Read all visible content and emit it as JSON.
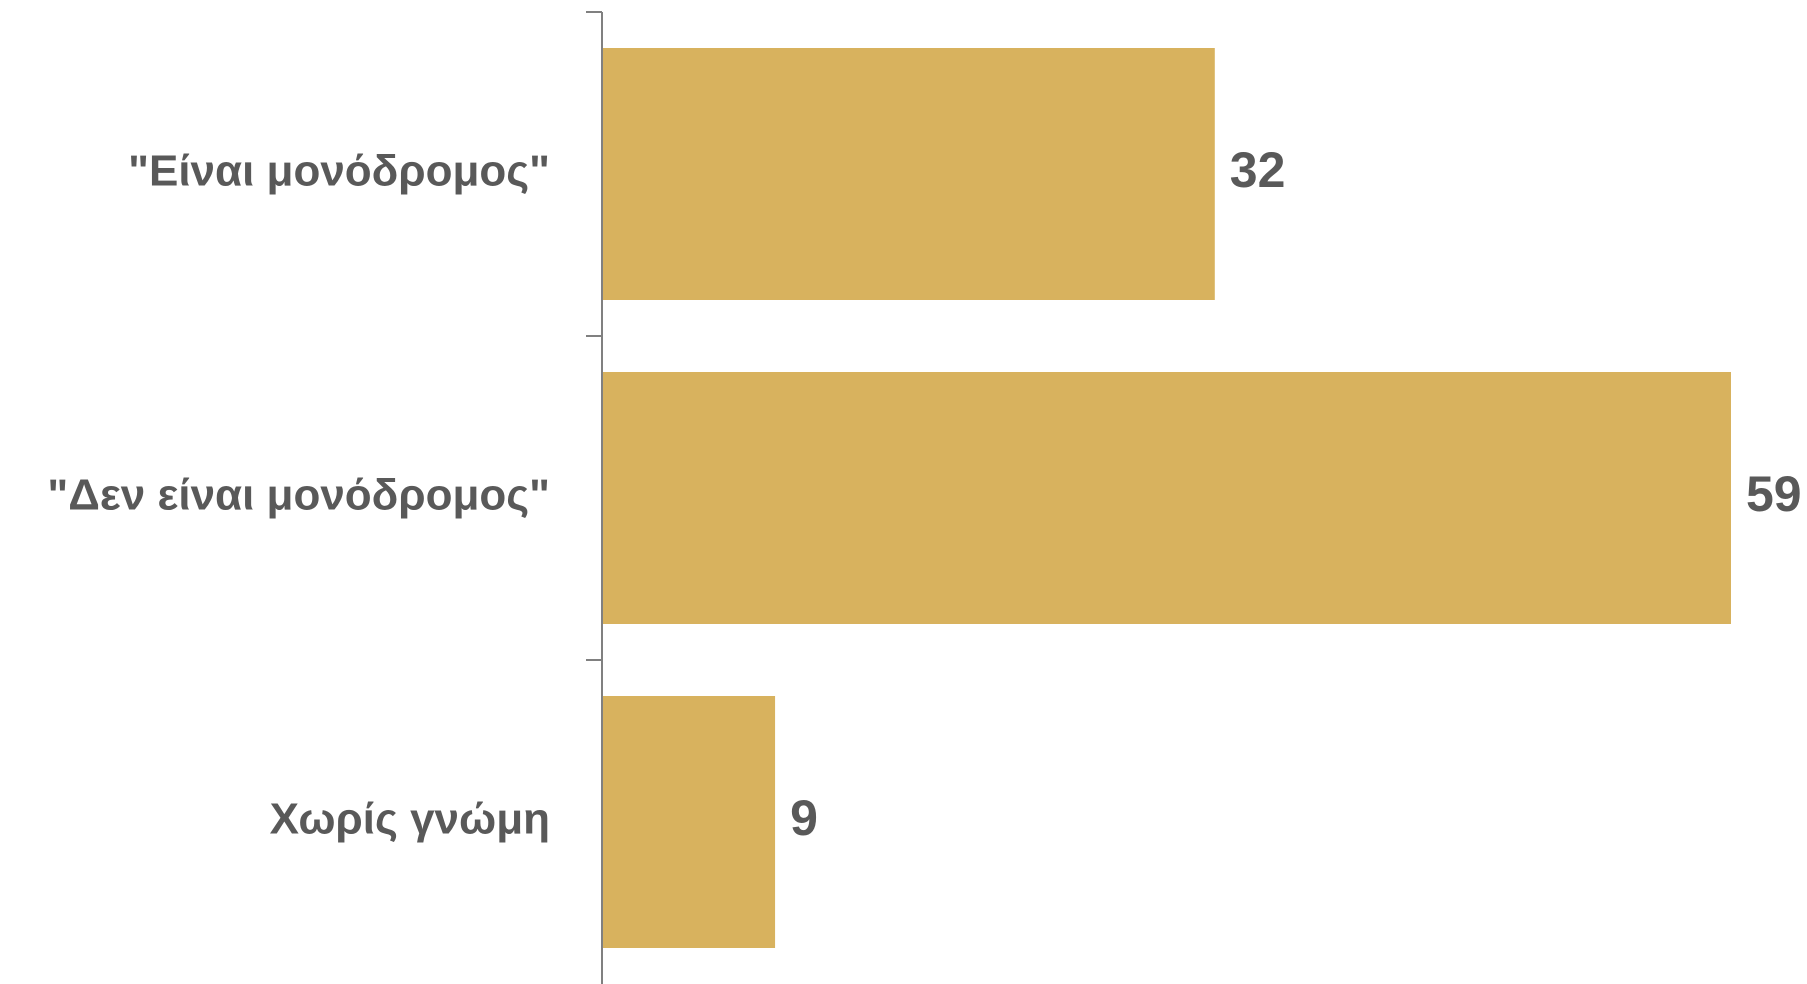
{
  "chart_data": {
    "type": "bar",
    "orientation": "horizontal",
    "categories": [
      "\"Είναι μονόδρομος\"",
      "\"Δεν είναι μονόδρομος\"",
      "Χωρίς γνώμη"
    ],
    "values": [
      32,
      59,
      9
    ],
    "data_labels": [
      "32",
      "59",
      "9"
    ],
    "xlim": [
      0,
      59
    ],
    "grid": false,
    "legend": "none",
    "colors": {
      "bar": "#d8b25e",
      "text": "#595959",
      "axis": "#808080"
    }
  }
}
